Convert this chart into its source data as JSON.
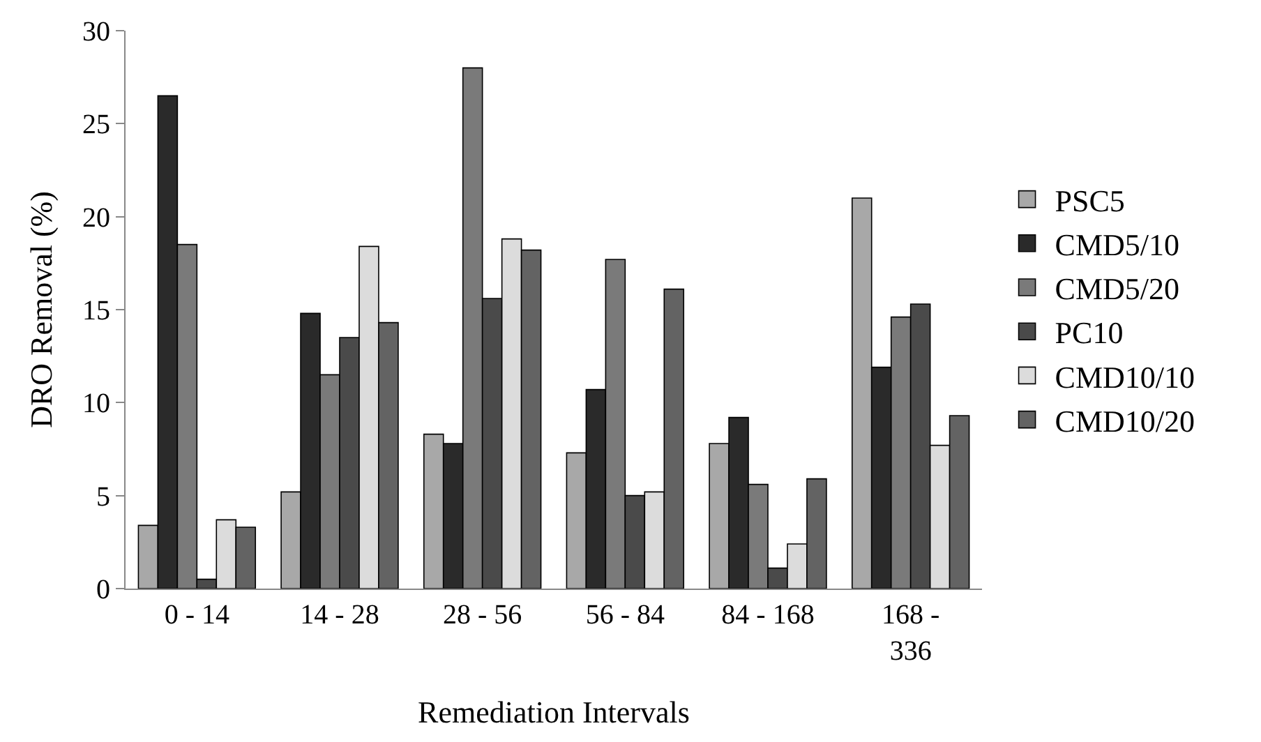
{
  "chart_data": {
    "type": "bar",
    "xlabel": "Remediation Intervals",
    "ylabel": "DRO Removal (%)",
    "categories": [
      "0 - 14",
      "14 - 28",
      "28 - 56",
      "56 - 84",
      "84 - 168",
      "168 - 336"
    ],
    "series": [
      {
        "name": "PSC5",
        "color": "#a8a8a8",
        "values": [
          3.4,
          5.2,
          8.3,
          7.3,
          7.8,
          21.0
        ]
      },
      {
        "name": "CMD5/10",
        "color": "#2a2a2a",
        "values": [
          26.5,
          14.8,
          7.8,
          10.7,
          9.2,
          11.9
        ]
      },
      {
        "name": "CMD5/20",
        "color": "#7a7a7a",
        "values": [
          18.5,
          11.5,
          28.0,
          17.7,
          5.6,
          14.6
        ]
      },
      {
        "name": "PC10",
        "color": "#4a4a4a",
        "values": [
          0.5,
          13.5,
          15.6,
          5.0,
          1.1,
          15.3
        ]
      },
      {
        "name": "CMD10/10",
        "color": "#dcdcdc",
        "values": [
          3.7,
          18.4,
          18.8,
          5.2,
          2.4,
          7.7
        ]
      },
      {
        "name": "CMD10/20",
        "color": "#636363",
        "values": [
          3.3,
          14.3,
          18.2,
          16.1,
          5.9,
          9.3
        ]
      }
    ],
    "ylim": [
      0,
      30
    ],
    "yticks": [
      0,
      5,
      10,
      15,
      20,
      25,
      30
    ],
    "legend": "right"
  }
}
